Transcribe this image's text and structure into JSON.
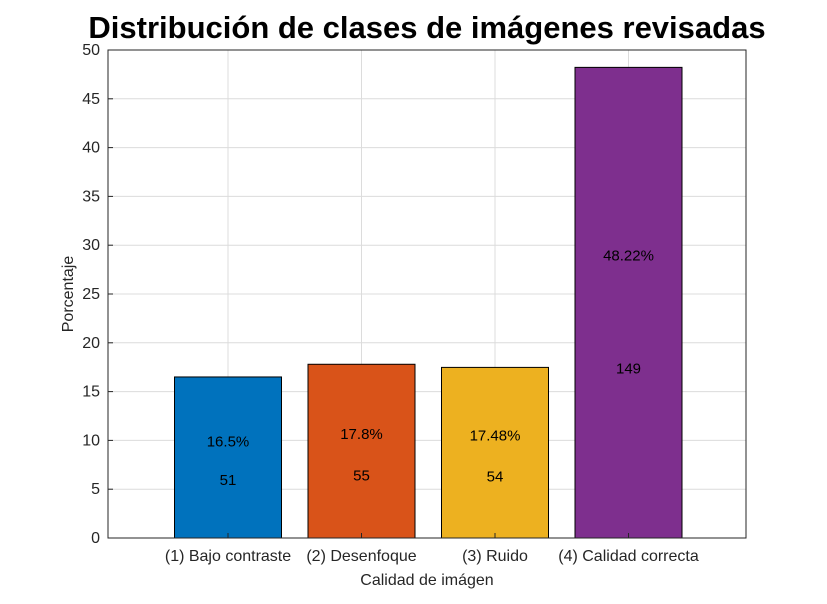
{
  "chart_data": {
    "type": "bar",
    "title": "Distribución de clases de imágenes revisadas",
    "xlabel": "Calidad de imágen",
    "ylabel": "Porcentaje",
    "categories": [
      "(1) Bajo contraste",
      "(2) Desenfoque",
      "(3) Ruido",
      "(4) Calidad correcta"
    ],
    "values": [
      16.5,
      17.8,
      17.48,
      48.22
    ],
    "percent_labels": [
      "16.5%",
      "17.8%",
      "17.48%",
      "48.22%"
    ],
    "count_labels": [
      "51",
      "55",
      "54",
      "149"
    ],
    "colors": [
      "#0072bd",
      "#d95319",
      "#edb120",
      "#7e2f8e"
    ],
    "ylim": [
      0,
      50
    ],
    "yticks": [
      0,
      5,
      10,
      15,
      20,
      25,
      30,
      35,
      40,
      45,
      50
    ],
    "grid": true,
    "legend": "none"
  }
}
